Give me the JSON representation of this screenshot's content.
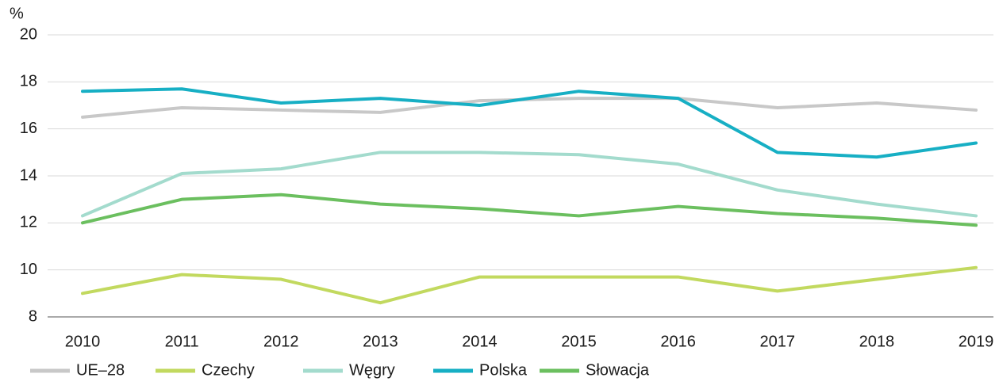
{
  "chart_data": {
    "type": "line",
    "y_label": "%",
    "categories": [
      "2010",
      "2011",
      "2012",
      "2013",
      "2014",
      "2015",
      "2016",
      "2017",
      "2018",
      "2019"
    ],
    "series": [
      {
        "name": "UE–28",
        "color": "#c8c8c8",
        "values": [
          16.5,
          16.9,
          16.8,
          16.7,
          17.2,
          17.3,
          17.3,
          16.9,
          17.1,
          16.8
        ]
      },
      {
        "name": "Czechy",
        "color": "#c2d95f",
        "values": [
          9.0,
          9.8,
          9.6,
          8.6,
          9.7,
          9.7,
          9.7,
          9.1,
          9.6,
          10.1
        ]
      },
      {
        "name": "Węgry",
        "color": "#a3dbcd",
        "values": [
          12.3,
          14.1,
          14.3,
          15.0,
          15.0,
          14.9,
          14.5,
          13.4,
          12.8,
          12.3
        ]
      },
      {
        "name": "Polska",
        "color": "#17afc4",
        "values": [
          17.6,
          17.7,
          17.1,
          17.3,
          17.0,
          17.6,
          17.3,
          15.0,
          14.8,
          15.4
        ]
      },
      {
        "name": "Słowacja",
        "color": "#6bbf5f",
        "values": [
          12.0,
          13.0,
          13.2,
          12.8,
          12.6,
          12.3,
          12.7,
          12.4,
          12.2,
          11.9
        ]
      }
    ],
    "ylim": [
      8,
      20
    ],
    "yticks": [
      8,
      10,
      12,
      14,
      16,
      18,
      20
    ],
    "grid": true
  }
}
